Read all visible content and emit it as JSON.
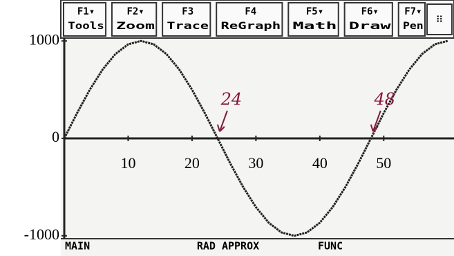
{
  "chart_data": {
    "type": "line",
    "x": [
      0,
      2,
      4,
      6,
      8,
      10,
      12,
      14,
      16,
      18,
      20,
      22,
      24,
      26,
      28,
      30,
      32,
      34,
      36,
      38,
      40,
      42,
      44,
      46,
      48,
      50,
      52,
      54,
      56,
      58,
      60
    ],
    "values": [
      0,
      259,
      500,
      707,
      866,
      966,
      1000,
      966,
      866,
      707,
      500,
      259,
      0,
      -259,
      -500,
      -707,
      -866,
      -966,
      -1000,
      -966,
      -866,
      -707,
      -500,
      -259,
      0,
      259,
      500,
      707,
      866,
      966,
      1000
    ],
    "color": "#222222",
    "xlim": [
      0,
      61
    ],
    "ylim": [
      -1030,
      1030
    ],
    "xticks": [
      10,
      20,
      30,
      40,
      50
    ],
    "yticks": [
      -1000,
      0,
      1000
    ],
    "grid": false,
    "annotations": [
      {
        "text": "24",
        "x": 24
      },
      {
        "text": "48",
        "x": 48
      }
    ]
  },
  "toolbar": {
    "buttons": [
      {
        "key": "F1▾",
        "label": "Tools"
      },
      {
        "key": "F2▾",
        "label": "Zoom"
      },
      {
        "key": "F3",
        "label": "Trace"
      },
      {
        "key": "F4",
        "label": "ReGraph"
      },
      {
        "key": "F5▾",
        "label": "Math"
      },
      {
        "key": "F6▾",
        "label": "Draw"
      },
      {
        "key": "F7▾",
        "label": "Pen"
      }
    ]
  },
  "status": {
    "left": "MAIN",
    "middle": "RAD APPROX",
    "right": "FUNC"
  }
}
